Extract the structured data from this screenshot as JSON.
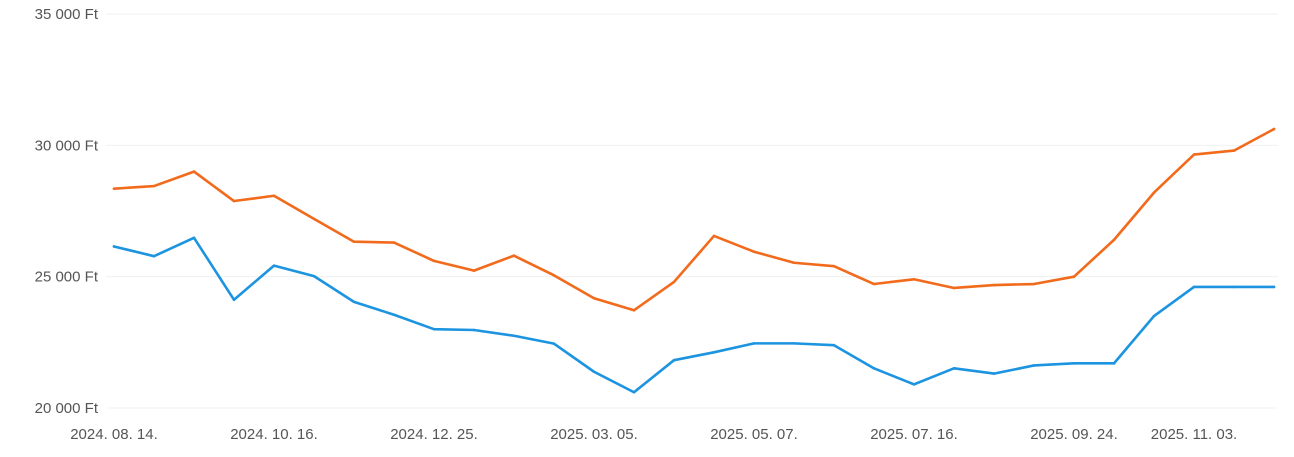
{
  "chart_data": {
    "type": "line",
    "title": "",
    "xlabel": "",
    "ylabel": "",
    "grid": true,
    "legend": "none",
    "ylim": [
      20000,
      35000
    ],
    "y_ticks": [
      {
        "value": 35000,
        "label": "35 000 Ft"
      },
      {
        "value": 30000,
        "label": "30 000 Ft"
      },
      {
        "value": 25000,
        "label": "25 000 Ft"
      },
      {
        "value": 20000,
        "label": "20 000 Ft"
      }
    ],
    "x": [
      "2024. 08. 14.",
      "2024. 08. 28.",
      "2024. 09. 11.",
      "2024. 09. 25.",
      "2024. 10. 16.",
      "2024. 10. 30.",
      "2024. 11. 13.",
      "2024. 11. 27.",
      "2024. 12. 25.",
      "2025. 01. 08.",
      "2025. 01. 22.",
      "2025. 02. 05.",
      "2025. 03. 05.",
      "2025. 03. 19.",
      "2025. 04. 02.",
      "2025. 04. 16.",
      "2025. 05. 07.",
      "2025. 05. 21.",
      "2025. 06. 04.",
      "2025. 06. 18.",
      "2025. 07. 16.",
      "2025. 07. 30.",
      "2025. 08. 13.",
      "2025. 08. 27.",
      "2025. 09. 24.",
      "2025. 10. 08.",
      "2025. 10. 22.",
      "2025. 11. 03.",
      "2025. 11. 17.",
      "2025. 12. 01."
    ],
    "x_tick_labels": [
      "2024. 08. 14.",
      "2024. 10. 16.",
      "2024. 12. 25.",
      "2025. 03. 05.",
      "2025. 05. 07.",
      "2025. 07. 16.",
      "2025. 09. 24.",
      "2025. 11. 03."
    ],
    "series": [
      {
        "color": "#f26a1b",
        "values": [
          28350,
          28450,
          29000,
          27880,
          28080,
          27200,
          26330,
          26300,
          25600,
          25230,
          25800,
          25050,
          24180,
          23720,
          24800,
          26550,
          25950,
          25530,
          25400,
          24720,
          24900,
          24570,
          24680,
          24720,
          25000,
          26400,
          28200,
          29650,
          29800,
          30620
        ]
      },
      {
        "color": "#1c94e0",
        "values": [
          26150,
          25780,
          26480,
          24120,
          25420,
          25020,
          24040,
          23550,
          23000,
          22970,
          22750,
          22450,
          21380,
          20600,
          21820,
          22120,
          22460,
          22460,
          22390,
          21510,
          20900,
          21510,
          21310,
          21620,
          21700,
          21700,
          23500,
          24610,
          24610,
          24610
        ]
      }
    ]
  }
}
